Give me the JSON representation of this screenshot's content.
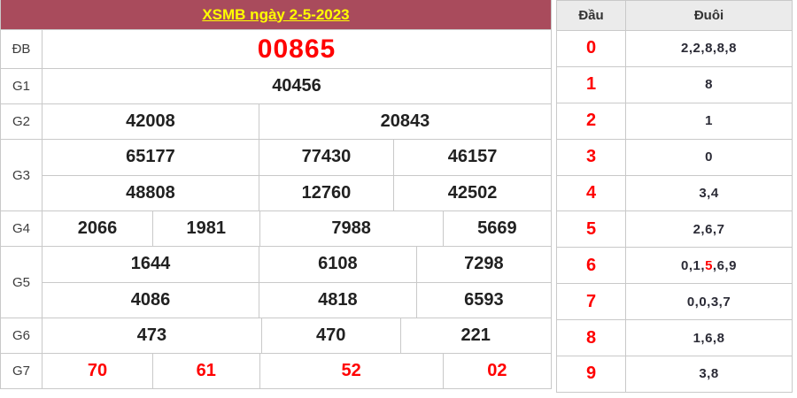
{
  "title": "XSMB ngày 2-5-2023",
  "colors": {
    "header_bar": "#a94b5c",
    "title_text": "#ffff00",
    "special_prize": "#ff0000",
    "prize_text": "#212121",
    "head_digit": "#ff0000",
    "highlight": "#ff0000",
    "table_border": "#c9c9c9",
    "panel_header_bg": "#ebebeb"
  },
  "prize_table": {
    "rows": [
      {
        "label": "ĐB",
        "type": "special",
        "cells": [
          [
            "00865"
          ]
        ]
      },
      {
        "label": "G1",
        "type": "normal",
        "cells": [
          [
            "40456"
          ]
        ]
      },
      {
        "label": "G2",
        "type": "normal",
        "cells": [
          [
            "42008",
            "20843"
          ]
        ]
      },
      {
        "label": "G3",
        "type": "normal",
        "cells": [
          [
            "65177",
            "77430",
            "46157"
          ],
          [
            "48808",
            "12760",
            "42502"
          ]
        ]
      },
      {
        "label": "G4",
        "type": "normal",
        "cells": [
          [
            "2066",
            "1981",
            "7988",
            "5669"
          ]
        ]
      },
      {
        "label": "G5",
        "type": "normal",
        "cells": [
          [
            "1644",
            "6108",
            "7298"
          ],
          [
            "4086",
            "4818",
            "6593"
          ]
        ]
      },
      {
        "label": "G6",
        "type": "normal",
        "cells": [
          [
            "473",
            "470",
            "221"
          ]
        ]
      },
      {
        "label": "G7",
        "type": "red",
        "cells": [
          [
            "70",
            "61",
            "52",
            "02"
          ]
        ]
      }
    ]
  },
  "head_tail": {
    "head_header": "Đầu",
    "tail_header": "Đuôi",
    "rows": [
      {
        "head": "0",
        "tail_segments": [
          {
            "text": "2,2,8,8,8"
          }
        ]
      },
      {
        "head": "1",
        "tail_segments": [
          {
            "text": "8"
          }
        ]
      },
      {
        "head": "2",
        "tail_segments": [
          {
            "text": "1"
          }
        ]
      },
      {
        "head": "3",
        "tail_segments": [
          {
            "text": "0"
          }
        ]
      },
      {
        "head": "4",
        "tail_segments": [
          {
            "text": "3,4"
          }
        ]
      },
      {
        "head": "5",
        "tail_segments": [
          {
            "text": "2,6,7"
          }
        ]
      },
      {
        "head": "6",
        "tail_segments": [
          {
            "text": "0,1,"
          },
          {
            "text": "5",
            "red": true
          },
          {
            "text": ",6,9"
          }
        ]
      },
      {
        "head": "7",
        "tail_segments": [
          {
            "text": "0,0,3,7"
          }
        ]
      },
      {
        "head": "8",
        "tail_segments": [
          {
            "text": "1,6,8"
          }
        ]
      },
      {
        "head": "9",
        "tail_segments": [
          {
            "text": "3,8"
          }
        ]
      }
    ]
  }
}
